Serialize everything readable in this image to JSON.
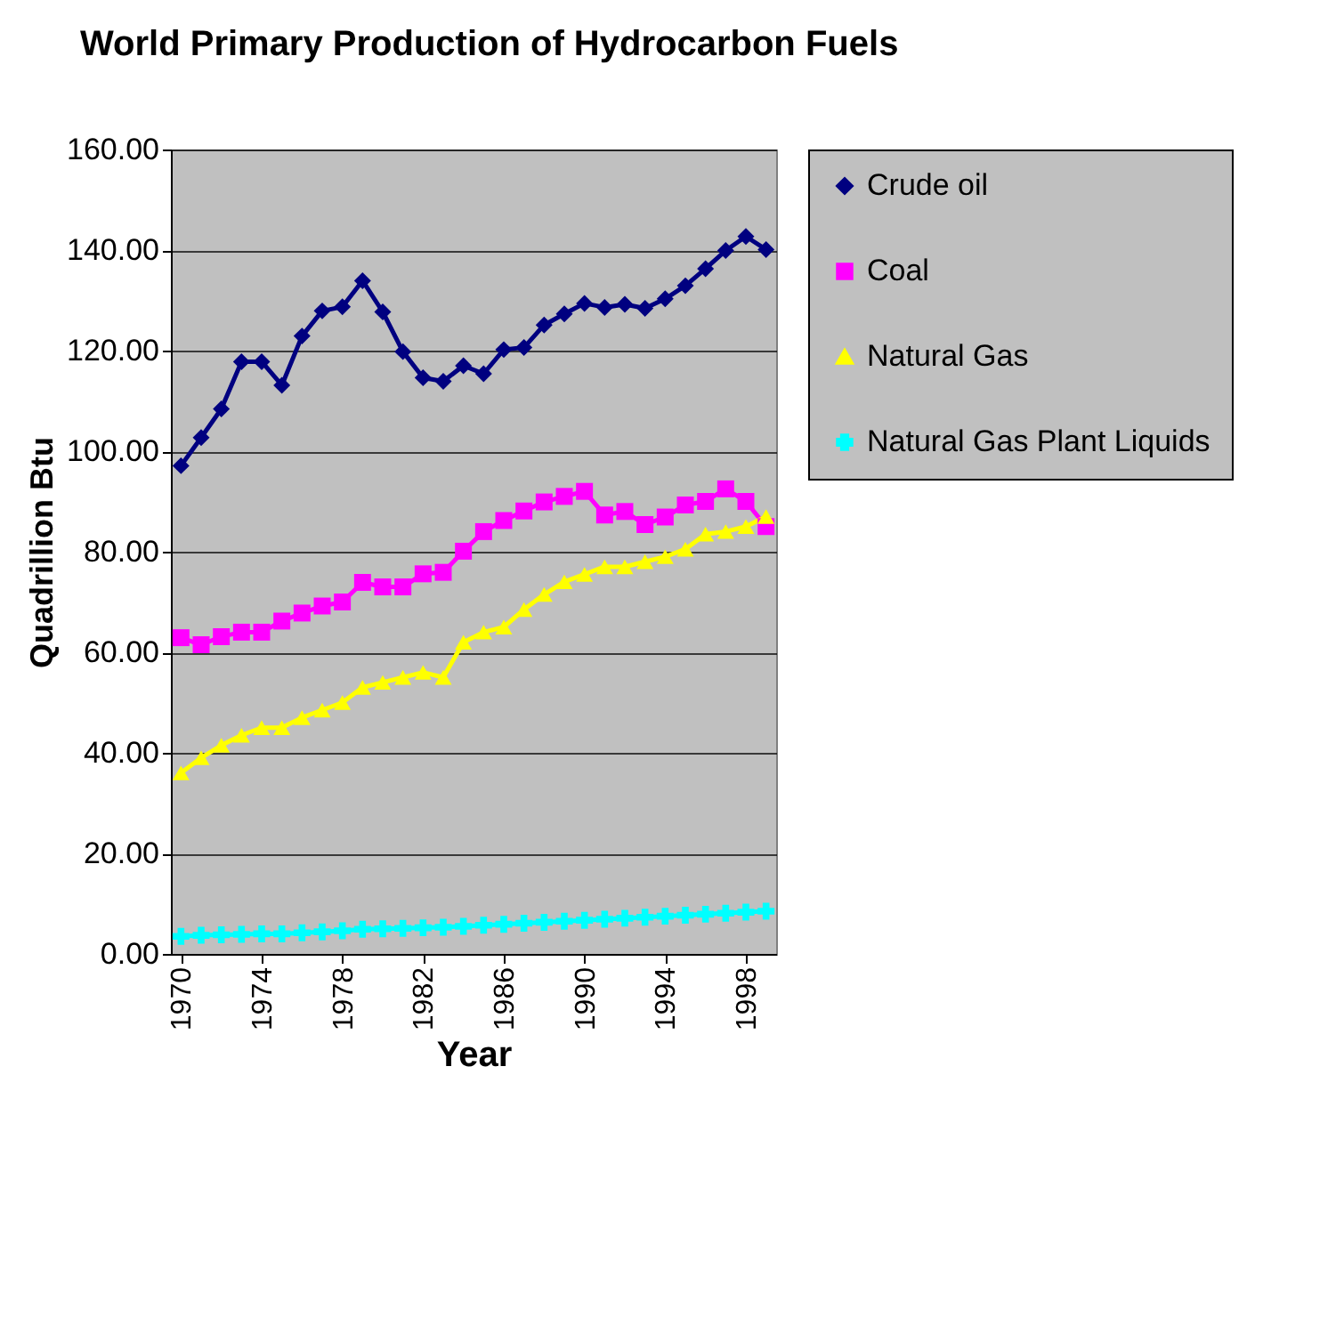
{
  "chart_data": {
    "type": "line",
    "title": "World Primary Production of Hydrocarbon Fuels",
    "xlabel": "Year",
    "ylabel": "Quadrillion Btu",
    "x": [
      1970,
      1971,
      1972,
      1973,
      1974,
      1975,
      1976,
      1977,
      1978,
      1979,
      1980,
      1981,
      1982,
      1983,
      1984,
      1985,
      1986,
      1987,
      1988,
      1989,
      1990,
      1991,
      1992,
      1993,
      1994,
      1995,
      1996,
      1997,
      1998,
      1999
    ],
    "xlim": [
      1969.5,
      1999.5
    ],
    "xticks": [
      1970,
      1974,
      1978,
      1982,
      1986,
      1990,
      1994,
      1998
    ],
    "ylim": [
      0,
      160
    ],
    "yticks": [
      {
        "value": 0,
        "label": "0.00"
      },
      {
        "value": 20,
        "label": "20.00"
      },
      {
        "value": 40,
        "label": "40.00"
      },
      {
        "value": 60,
        "label": "60.00"
      },
      {
        "value": 80,
        "label": "80.00"
      },
      {
        "value": 100,
        "label": "100.00"
      },
      {
        "value": 120,
        "label": "120.00"
      },
      {
        "value": 140,
        "label": "140.00"
      },
      {
        "value": 160,
        "label": "160.00"
      }
    ],
    "grid": "y",
    "legend": "right",
    "line_style": "solid",
    "series": [
      {
        "name": "Crude oil",
        "color": "#000080",
        "marker": "diamond",
        "values": [
          97.1,
          102.7,
          108.4,
          117.8,
          117.8,
          113.1,
          122.9,
          127.9,
          128.7,
          133.9,
          127.7,
          119.8,
          114.6,
          113.9,
          117.0,
          115.4,
          120.2,
          120.6,
          125.1,
          127.3,
          129.4,
          128.6,
          129.2,
          128.4,
          130.3,
          132.9,
          136.3,
          139.9,
          142.7,
          140.1
        ]
      },
      {
        "name": "Coal",
        "color": "#ff00ff",
        "marker": "square",
        "values": [
          62.9,
          61.5,
          63.1,
          64.0,
          64.0,
          66.2,
          67.8,
          69.2,
          70.0,
          73.9,
          73.0,
          73.0,
          75.6,
          75.9,
          80.1,
          84.0,
          86.2,
          88.1,
          89.9,
          91.0,
          92.0,
          87.3,
          88.0,
          85.4,
          86.9,
          89.3,
          90.0,
          92.5,
          90.0,
          85.0
        ]
      },
      {
        "name": "Natural Gas",
        "color": "#ffff00",
        "marker": "triangle",
        "values": [
          36,
          39,
          41.5,
          43.5,
          45,
          45,
          47,
          48.5,
          50,
          53,
          54,
          55,
          56,
          55,
          62,
          64,
          65,
          68.5,
          71.5,
          74,
          75.5,
          77,
          77,
          78,
          79,
          80.5,
          83.5,
          84,
          85,
          87
        ]
      },
      {
        "name": "Natural Gas Plant Liquids",
        "color": "#00ffff",
        "marker": "cross",
        "values": [
          3.5,
          3.7,
          3.8,
          3.9,
          4.0,
          4.0,
          4.2,
          4.4,
          4.6,
          4.9,
          5.0,
          5.1,
          5.2,
          5.3,
          5.5,
          5.7,
          5.9,
          6.1,
          6.3,
          6.5,
          6.7,
          6.9,
          7.1,
          7.3,
          7.5,
          7.7,
          7.9,
          8.1,
          8.3,
          8.5
        ]
      }
    ]
  }
}
